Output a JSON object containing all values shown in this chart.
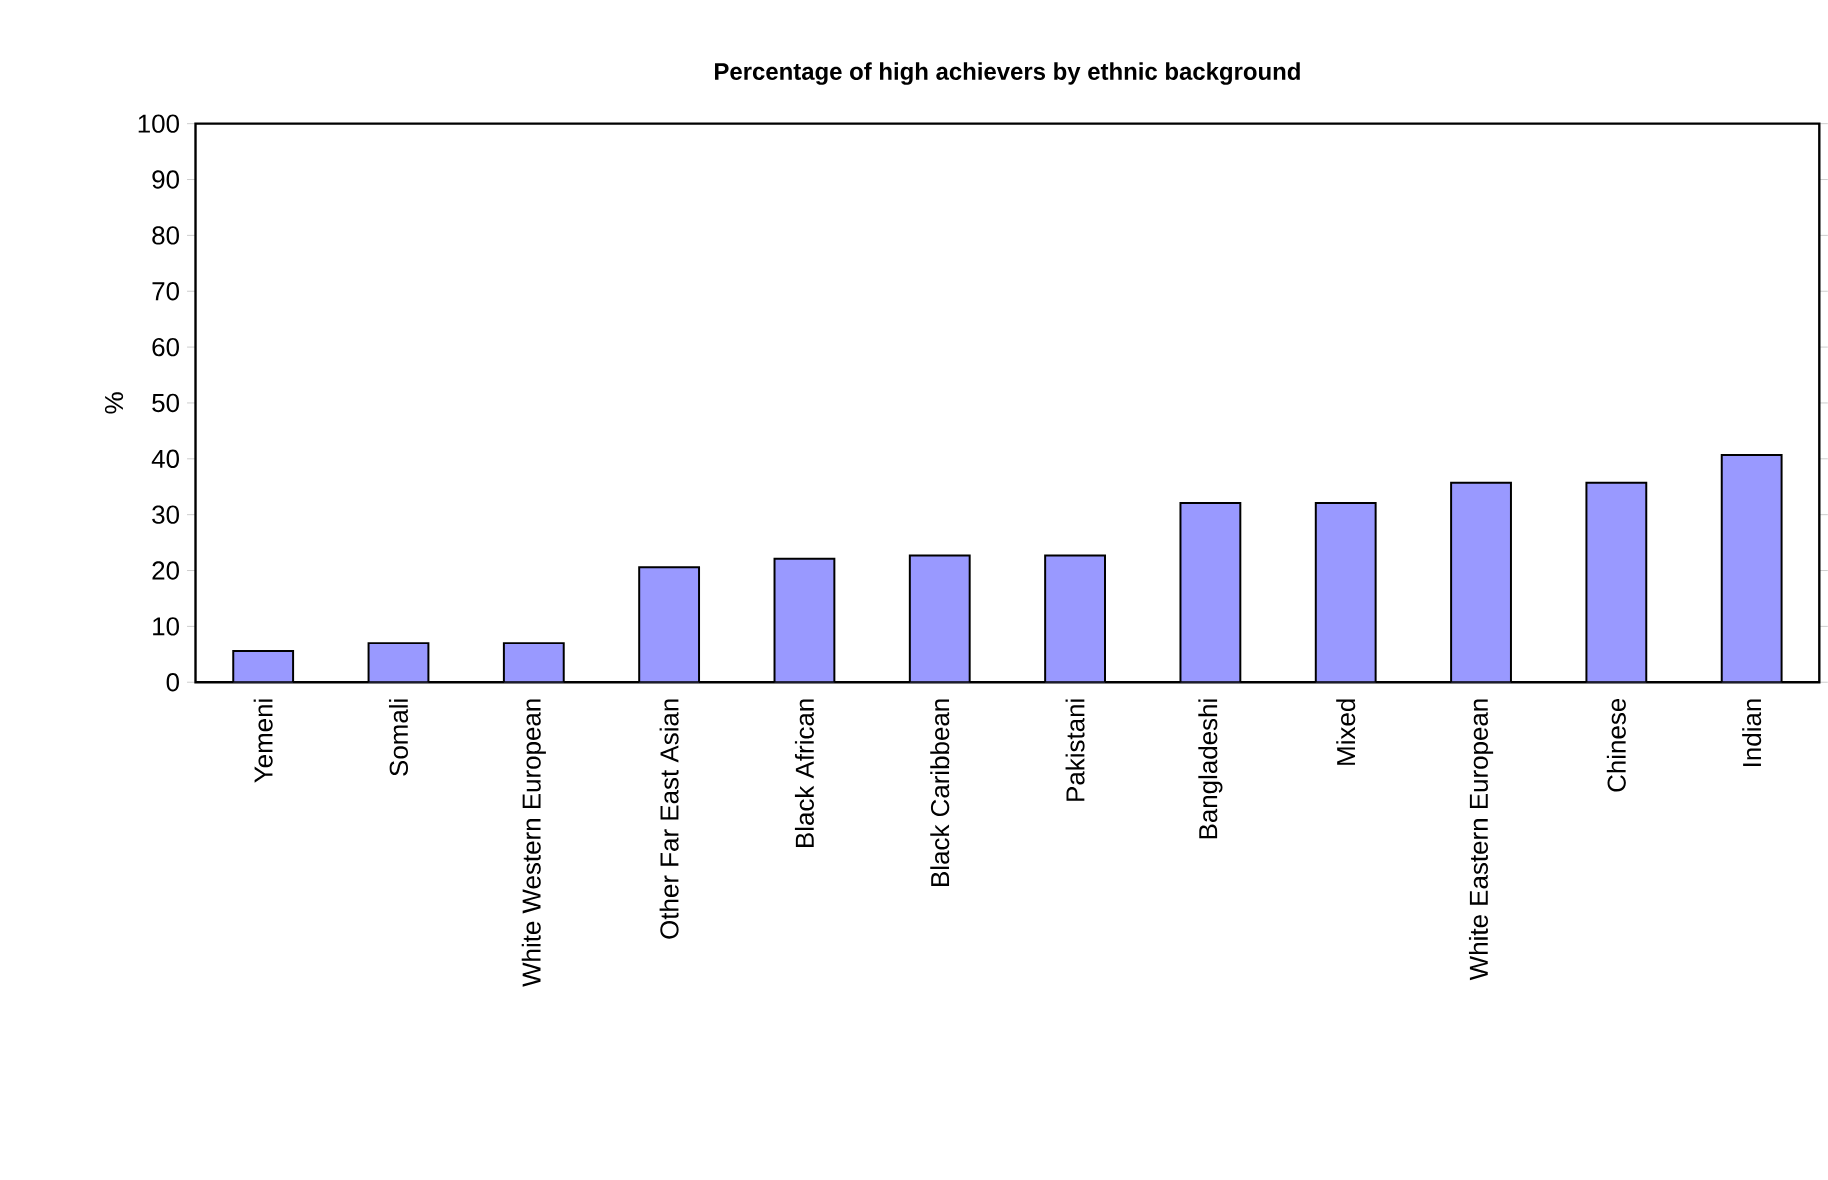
{
  "chart_data": {
    "type": "bar",
    "title": "Percentage of high achievers by ethnic background",
    "ylabel": "%",
    "categories": [
      "Yemeni",
      "Somali",
      "White Western European",
      "Other Far East Asian",
      "Black African",
      "Black Caribbean",
      "Pakistani",
      "Bangladeshi",
      "Mixed",
      "White Eastern European",
      "Chinese",
      "Indian"
    ],
    "values": [
      5.6,
      7.0,
      7.0,
      20.6,
      22.1,
      22.7,
      22.7,
      32.1,
      32.1,
      35.7,
      35.7,
      40.7
    ],
    "color": "#9999ff",
    "ylim": [
      0,
      100
    ],
    "yticks": [
      0,
      10,
      20,
      30,
      40,
      50,
      60,
      70,
      80,
      90,
      100
    ]
  }
}
